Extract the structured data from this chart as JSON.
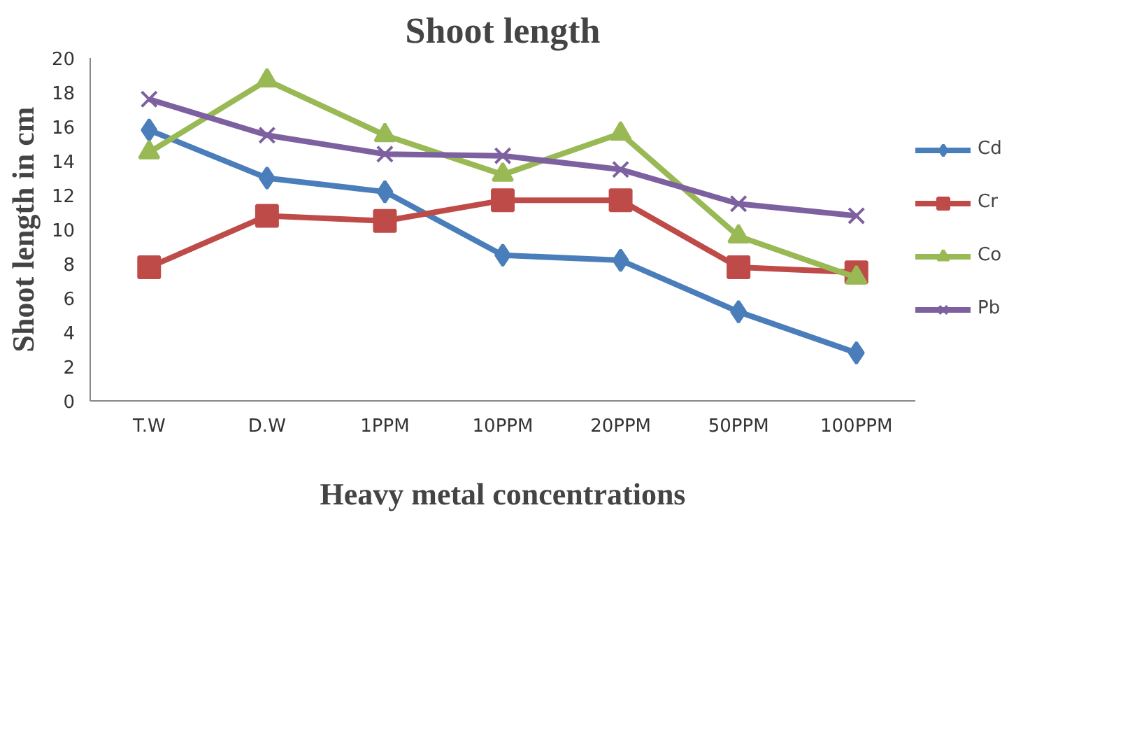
{
  "chart_data": {
    "type": "line",
    "title": "Shoot length",
    "xlabel": "Heavy metal concentrations",
    "ylabel": "Shoot length in cm",
    "categories": [
      "T.W",
      "D.W",
      "1PPM",
      "10PPM",
      "20PPM",
      "50PPM",
      "100PPM"
    ],
    "ylim": [
      0,
      20
    ],
    "yticks": [
      0,
      2,
      4,
      6,
      8,
      10,
      12,
      14,
      16,
      18,
      20
    ],
    "grid": false,
    "legend": "right",
    "series": [
      {
        "name": "Cd",
        "color": "#4a7ebb",
        "marker": "diamond",
        "values": [
          15.8,
          13.0,
          12.2,
          8.5,
          8.2,
          5.2,
          2.8
        ]
      },
      {
        "name": "Cr",
        "color": "#be4b48",
        "marker": "square",
        "values": [
          7.8,
          10.8,
          10.5,
          11.7,
          11.7,
          7.8,
          7.5
        ]
      },
      {
        "name": "Co",
        "color": "#98b954",
        "marker": "triangle",
        "values": [
          14.5,
          18.7,
          15.5,
          13.2,
          15.6,
          9.6,
          7.2
        ]
      },
      {
        "name": "Pb",
        "color": "#7d60a0",
        "marker": "x",
        "values": [
          17.6,
          15.5,
          14.4,
          14.3,
          13.5,
          11.5,
          10.8
        ]
      }
    ]
  }
}
